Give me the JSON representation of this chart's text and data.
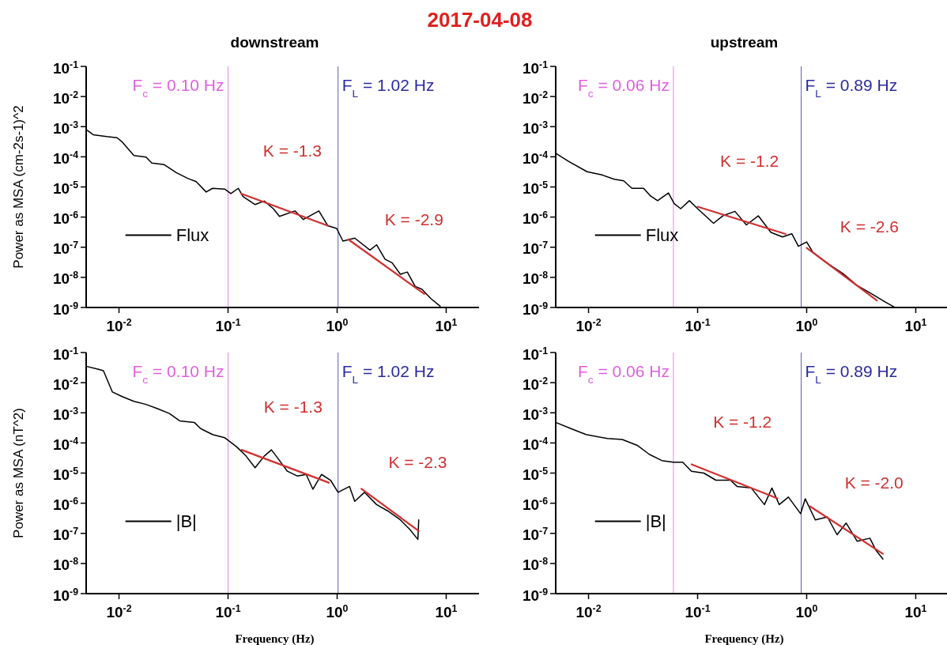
{
  "chart_data": [
    {
      "type": "line",
      "title": "2017-04-08",
      "subtitle": "downstream",
      "ylabel": "Power as MSA (cm-2s-1)^2",
      "log": "xy",
      "legend": "left",
      "xlim": [
        0.005,
        20
      ],
      "ylim": [
        1e-09,
        0.1
      ],
      "xticks": [
        {
          "value": 0.01,
          "label": "10$^{-2}$"
        },
        {
          "value": 0.1,
          "label": "10$^{-1}$"
        },
        {
          "value": 1,
          "label": "10$^{0}$"
        },
        {
          "value": 10,
          "label": "10$^{1}$"
        }
      ],
      "yticks": [
        {
          "value": 1e-09,
          "label": "10$^{-9}$"
        },
        {
          "value": 1e-08,
          "label": "10$^{-8}$"
        },
        {
          "value": 1e-07,
          "label": "10$^{-7}$"
        },
        {
          "value": 1e-06,
          "label": "10$^{-6}$"
        },
        {
          "value": 1e-05,
          "label": "10$^{-5}$"
        },
        {
          "value": 0.0001,
          "label": "10$^{-4}$"
        },
        {
          "value": 0.001,
          "label": "10$^{-3}$"
        },
        {
          "value": 0.01,
          "label": "10$^{-2}$"
        },
        {
          "value": 0.1,
          "label": "10$^{-1}$"
        }
      ],
      "ref_lines": [
        {
          "axis": "x",
          "value": 0.1,
          "label": "F$_{c}$ = 0.10 Hz",
          "color": "#e060e0"
        },
        {
          "axis": "x",
          "value": 1.02,
          "label": "F$_{L}$ = 1.02 Hz",
          "color": "#2a2aa0"
        }
      ],
      "annotations": [
        "K = -1.3",
        "K = -2.9"
      ],
      "series": [
        {
          "name": "Flux",
          "type": "line",
          "color": "#000000",
          "x": [
            0.005,
            0.0058,
            0.0077,
            0.0096,
            0.0106,
            0.0137,
            0.0177,
            0.02,
            0.026,
            0.0335,
            0.043,
            0.051,
            0.063,
            0.072,
            0.093,
            0.106,
            0.124,
            0.137,
            0.177,
            0.215,
            0.26,
            0.296,
            0.41,
            0.49,
            0.68,
            0.82,
            0.99,
            1.13,
            1.45,
            2.0,
            2.3,
            2.75,
            3.2,
            3.8,
            4.4,
            5.2,
            6.0,
            7.2,
            8.8
          ],
          "values": [
            0.0008,
            0.00054,
            0.00047,
            0.00043,
            0.00032,
            0.00011,
            9.8e-05,
            6.2e-05,
            5.5e-05,
            3e-05,
            1.9e-05,
            1.5e-05,
            6.8e-06,
            9e-06,
            8.5e-06,
            6e-06,
            9e-06,
            4.8e-06,
            2.6e-06,
            3.4e-06,
            1.9e-06,
            1.05e-06,
            1.6e-06,
            8.3e-07,
            1.6e-06,
            5.2e-07,
            4.2e-07,
            1.6e-07,
            2e-07,
            8e-08,
            1.2e-07,
            4e-08,
            3e-08,
            1.26e-08,
            1.5e-08,
            5e-09,
            4e-09,
            2e-09,
            1.1e-09
          ]
        },
        {
          "type": "line",
          "color": "#d03030",
          "x": [
            0.132,
            0.82
          ],
          "values": [
            6e-06,
            5.2e-07
          ]
        },
        {
          "type": "line",
          "color": "#d03030",
          "x": [
            1.27,
            6.3
          ],
          "values": [
            1.8e-07,
            2.8e-09
          ]
        }
      ]
    },
    {
      "type": "line",
      "subtitle": "upstream",
      "log": "xy",
      "legend": "left",
      "xlim": [
        0.005,
        20
      ],
      "ylim": [
        1e-09,
        0.1
      ],
      "xticks": [
        {
          "value": 0.01,
          "label": "10$^{-2}$"
        },
        {
          "value": 0.1,
          "label": "10$^{-1}$"
        },
        {
          "value": 1,
          "label": "10$^{0}$"
        },
        {
          "value": 10,
          "label": "10$^{1}$"
        }
      ],
      "yticks": [
        {
          "value": 1e-09,
          "label": "10$^{-9}$"
        },
        {
          "value": 1e-08,
          "label": "10$^{-8}$"
        },
        {
          "value": 1e-07,
          "label": "10$^{-7}$"
        },
        {
          "value": 1e-06,
          "label": "10$^{-6}$"
        },
        {
          "value": 1e-05,
          "label": "10$^{-5}$"
        },
        {
          "value": 0.0001,
          "label": "10$^{-4}$"
        },
        {
          "value": 0.001,
          "label": "10$^{-3}$"
        },
        {
          "value": 0.01,
          "label": "10$^{-2}$"
        },
        {
          "value": 0.1,
          "label": "10$^{-1}$"
        }
      ],
      "ref_lines": [
        {
          "axis": "x",
          "value": 0.06,
          "label": "F$_{c}$ = 0.06 Hz",
          "color": "#e060e0"
        },
        {
          "axis": "x",
          "value": 0.89,
          "label": "F$_{L}$ = 0.89 Hz",
          "color": "#2a2aa0"
        }
      ],
      "annotations": [
        "K = -1.2",
        "K = -2.6"
      ],
      "series": [
        {
          "name": "Flux",
          "type": "line",
          "color": "#000000",
          "x": [
            0.0051,
            0.0066,
            0.0097,
            0.0133,
            0.0172,
            0.021,
            0.025,
            0.032,
            0.037,
            0.043,
            0.054,
            0.061,
            0.07,
            0.084,
            0.1,
            0.14,
            0.17,
            0.22,
            0.28,
            0.36,
            0.47,
            0.6,
            0.73,
            0.84,
            1.0,
            1.14,
            1.6,
            2.14,
            2.9,
            4.1,
            5.3,
            6.3
          ],
          "values": [
            0.000126,
            7e-05,
            3.2e-05,
            2.5e-05,
            1.8e-05,
            1.6e-05,
            9e-06,
            9e-06,
            5e-06,
            3.5e-06,
            6.3e-06,
            2.8e-06,
            1.9e-06,
            3.5e-06,
            1.9e-06,
            6.2e-07,
            1.1e-06,
            1.55e-06,
            5.5e-07,
            1.1e-06,
            3.1e-07,
            2.2e-07,
            2.8e-07,
            1.07e-07,
            1.5e-07,
            6.8e-08,
            2.7e-08,
            1.35e-08,
            5.4e-09,
            2.6e-09,
            1.5e-09,
            1.05e-09
          ]
        },
        {
          "type": "line",
          "color": "#d03030",
          "x": [
            0.1,
            0.64
          ],
          "values": [
            2.2e-06,
            2.75e-07
          ]
        },
        {
          "type": "line",
          "color": "#d03030",
          "x": [
            1.0,
            4.4
          ],
          "values": [
            9.5e-08,
            1.7e-09
          ]
        }
      ]
    },
    {
      "type": "line",
      "xlabel": "Frequency (Hz)",
      "ylabel": "Power as MSA (nT^2)",
      "log": "xy",
      "legend": "left",
      "xlim": [
        0.005,
        20
      ],
      "ylim": [
        1e-09,
        0.1
      ],
      "xticks": [
        {
          "value": 0.01,
          "label": "10$^{-2}$"
        },
        {
          "value": 0.1,
          "label": "10$^{-1}$"
        },
        {
          "value": 1,
          "label": "10$^{0}$"
        },
        {
          "value": 10,
          "label": "10$^{1}$"
        }
      ],
      "yticks": [
        {
          "value": 1e-09,
          "label": "10$^{-9}$"
        },
        {
          "value": 1e-08,
          "label": "10$^{-8}$"
        },
        {
          "value": 1e-07,
          "label": "10$^{-7}$"
        },
        {
          "value": 1e-06,
          "label": "10$^{-6}$"
        },
        {
          "value": 1e-05,
          "label": "10$^{-5}$"
        },
        {
          "value": 0.0001,
          "label": "10$^{-4}$"
        },
        {
          "value": 0.001,
          "label": "10$^{-3}$"
        },
        {
          "value": 0.01,
          "label": "10$^{-2}$"
        },
        {
          "value": 0.1,
          "label": "10$^{-1}$"
        }
      ],
      "ref_lines": [
        {
          "axis": "x",
          "value": 0.1,
          "label": "F$_{c}$ = 0.10 Hz",
          "color": "#e060e0"
        },
        {
          "axis": "x",
          "value": 1.02,
          "label": "F$_{L}$ = 1.02 Hz",
          "color": "#2a2aa0"
        }
      ],
      "annotations": [
        "K = -1.3",
        "K = -2.3"
      ],
      "series": [
        {
          "name": "|B|",
          "type": "line",
          "color": "#000000",
          "x": [
            0.005,
            0.0064,
            0.0072,
            0.0087,
            0.0106,
            0.0137,
            0.0177,
            0.0228,
            0.029,
            0.036,
            0.049,
            0.056,
            0.072,
            0.093,
            0.106,
            0.12,
            0.146,
            0.177,
            0.215,
            0.25,
            0.29,
            0.35,
            0.43,
            0.52,
            0.6,
            0.72,
            0.87,
            1.02,
            1.3,
            1.45,
            1.78,
            2.3,
            2.9,
            3.8,
            4.6,
            5.5,
            5.6
          ],
          "values": [
            0.035,
            0.028,
            0.025,
            0.0049,
            0.0035,
            0.0024,
            0.0019,
            0.00135,
            0.00095,
            0.00054,
            0.00048,
            0.0003,
            0.00019,
            0.00015,
            0.000105,
            7.4e-05,
            3.7e-05,
            1.5e-05,
            3.7e-05,
            5.9e-05,
            2.9e-05,
            1.15e-05,
            8e-06,
            9e-06,
            2.9e-06,
            9e-06,
            5.8e-06,
            2.3e-06,
            3.6e-06,
            1.15e-06,
            2.3e-06,
            9e-07,
            5.6e-07,
            2.8e-07,
            1.4e-07,
            6.3e-08,
            2.8e-07
          ]
        },
        {
          "type": "line",
          "color": "#d03030",
          "x": [
            0.133,
            0.84
          ],
          "values": [
            5.9e-05,
            4.8e-06
          ]
        },
        {
          "type": "line",
          "color": "#d03030",
          "x": [
            1.67,
            5.6
          ],
          "values": [
            3e-06,
            1.2e-07
          ]
        }
      ]
    },
    {
      "type": "line",
      "xlabel": "Frequency (Hz)",
      "log": "xy",
      "legend": "left",
      "xlim": [
        0.005,
        20
      ],
      "ylim": [
        1e-09,
        0.1
      ],
      "xticks": [
        {
          "value": 0.01,
          "label": "10$^{-2}$"
        },
        {
          "value": 0.1,
          "label": "10$^{-1}$"
        },
        {
          "value": 1,
          "label": "10$^{0}$"
        },
        {
          "value": 10,
          "label": "10$^{1}$"
        }
      ],
      "yticks": [
        {
          "value": 1e-09,
          "label": "10$^{-9}$"
        },
        {
          "value": 1e-08,
          "label": "10$^{-8}$"
        },
        {
          "value": 1e-07,
          "label": "10$^{-7}$"
        },
        {
          "value": 1e-06,
          "label": "10$^{-6}$"
        },
        {
          "value": 1e-05,
          "label": "10$^{-5}$"
        },
        {
          "value": 0.0001,
          "label": "10$^{-4}$"
        },
        {
          "value": 0.001,
          "label": "10$^{-3}$"
        },
        {
          "value": 0.01,
          "label": "10$^{-2}$"
        },
        {
          "value": 0.1,
          "label": "10$^{-1}$"
        }
      ],
      "ref_lines": [
        {
          "axis": "x",
          "value": 0.06,
          "label": "F$_{c}$ = 0.06 Hz",
          "color": "#e060e0"
        },
        {
          "axis": "x",
          "value": 0.89,
          "label": "F$_{L}$ = 0.89 Hz",
          "color": "#2a2aa0"
        }
      ],
      "annotations": [
        "K = -1.2",
        "K = -2.0"
      ],
      "series": [
        {
          "name": "|B|",
          "type": "line",
          "color": "#000000",
          "x": [
            0.005,
            0.0069,
            0.0095,
            0.0149,
            0.0204,
            0.028,
            0.036,
            0.047,
            0.06,
            0.073,
            0.088,
            0.114,
            0.147,
            0.2,
            0.23,
            0.31,
            0.41,
            0.48,
            0.56,
            0.68,
            0.88,
            0.97,
            1.2,
            1.55,
            1.9,
            2.3,
            2.9,
            3.8,
            4.3,
            5.0
          ],
          "values": [
            0.00048,
            0.0003,
            0.00019,
            0.00014,
            0.00013,
            8.3e-05,
            4.2e-05,
            2.6e-05,
            2.3e-05,
            2.3e-05,
            1.15e-05,
            1e-05,
            5.8e-06,
            5.8e-06,
            3.6e-06,
            3.2e-06,
            9e-07,
            3.2e-06,
            9e-07,
            1.6e-06,
            4.5e-07,
            1.4e-06,
            2.8e-07,
            3.5e-07,
            9e-08,
            2.2e-07,
            5.5e-08,
            6.9e-08,
            2.8e-08,
            1.4e-08
          ]
        },
        {
          "type": "line",
          "color": "#d03030",
          "x": [
            0.088,
            0.54
          ],
          "values": [
            1.95e-05,
            1.45e-06
          ]
        },
        {
          "type": "line",
          "color": "#d03030",
          "x": [
            1.07,
            5.0
          ],
          "values": [
            7.9e-07,
            2.1e-08
          ]
        }
      ]
    }
  ]
}
